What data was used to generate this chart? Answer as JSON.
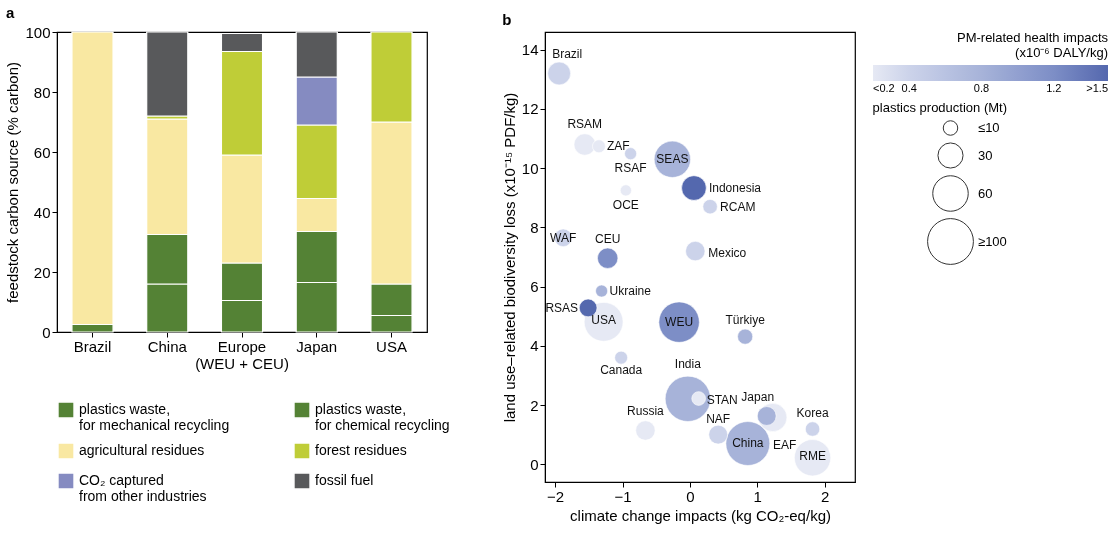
{
  "chart_data": [
    {
      "type": "bar",
      "title": "a",
      "ylabel": "feedstock carbon source (% carbon)",
      "stacked": true,
      "categories": [
        "Brazil",
        "China",
        "Europe\n(WEU + CEU)",
        "Japan",
        "USA"
      ],
      "series": [
        {
          "name": "plastics waste,\nfor mechanical recycling",
          "color": "#548235",
          "values": [
            2.5,
            16,
            10.5,
            16.5,
            5.5
          ]
        },
        {
          "name": "plastics waste,\nfor chemical recycling",
          "color": "#548235",
          "values": [
            null,
            16.5,
            12.5,
            17,
            10.5
          ]
        },
        {
          "name": "agricultural residues",
          "color": "#f9e8a2",
          "values": [
            97.5,
            38.5,
            36,
            11,
            54
          ]
        },
        {
          "name": "forest residues",
          "color": "#bfcd37",
          "values": [
            null,
            1,
            34.5,
            24.5,
            30
          ]
        },
        {
          "name": "CO₂ captured\nfrom other industries",
          "color": "#858bc1",
          "values": [
            null,
            null,
            null,
            16,
            null
          ]
        },
        {
          "name": "fossil fuel",
          "color": "#58595b",
          "values": [
            null,
            28,
            6,
            15,
            null
          ]
        }
      ],
      "ylim": [
        0,
        100
      ],
      "yticks": [
        0,
        20,
        40,
        60,
        80,
        100
      ],
      "legend": "bottom",
      "grid": false
    },
    {
      "type": "bubble",
      "title": "b",
      "xlabel": "climate change impacts (kg CO₂-eq/kg)",
      "ylabel": "land use–related biodiversity loss (x10⁻¹⁵ PDF/kg)",
      "x": [
        -1.94,
        -1.56,
        -1.35,
        -0.88,
        -0.26,
        -0.95,
        0.06,
        0.3,
        -1.88,
        0.08,
        -1.22,
        -1.31,
        -1.51,
        -1.28,
        -0.16,
        0.82,
        -1.02,
        -0.03,
        0.13,
        1.14,
        1.23,
        1.82,
        -0.66,
        0.42,
        0.86,
        1.82
      ],
      "values": [
        13.2,
        10.8,
        10.74,
        10.49,
        10.3,
        9.25,
        9.33,
        8.7,
        7.65,
        7.2,
        6.96,
        5.85,
        5.28,
        4.81,
        4.8,
        4.31,
        3.6,
        2.21,
        2.22,
        1.63,
        1.58,
        1.19,
        1.14,
        1.0,
        0.7,
        0.22
      ],
      "sizes": [
        25,
        22,
        8,
        7,
        63,
        6,
        29,
        10,
        15,
        18,
        20,
        7,
        15,
        72,
        78,
        11,
        8,
        98,
        9,
        17,
        38,
        10,
        18,
        17,
        92,
        63
      ],
      "cvalues": [
        0.4,
        0.2,
        0.2,
        0.4,
        0.8,
        0.2,
        1.5,
        0.4,
        0.4,
        0.4,
        1.2,
        0.8,
        1.5,
        0.2,
        1.2,
        0.8,
        0.4,
        0.8,
        0.2,
        0.8,
        0.2,
        0.4,
        0.2,
        0.4,
        0.8,
        0.2
      ],
      "colors": [
        "#ccd3ea",
        "#e6e9f4",
        "#e6e9f4",
        "#ccd3ea",
        "#a7b3d9",
        "#e6e9f4",
        "#5468ae",
        "#ccd3ea",
        "#ccd3ea",
        "#ccd3ea",
        "#7d8ec6",
        "#a7b3d9",
        "#5468ae",
        "#e6e9f4",
        "#7d8ec6",
        "#a7b3d9",
        "#ccd3ea",
        "#a7b3d9",
        "#e6e9f4",
        "#a7b3d9",
        "#e6e9f4",
        "#ccd3ea",
        "#e6e9f4",
        "#ccd3ea",
        "#a7b3d9",
        "#e6e9f4"
      ],
      "clabel": "PM-related health impacts\n(x10⁻⁶ DALY/kg)",
      "cticks": [
        {
          "value": 0.2,
          "label": "<0.2"
        },
        0.4,
        0.8,
        1.2,
        {
          "value": 1.5,
          "label": ">1.5"
        }
      ],
      "legend_title": "plastics production (Mt)",
      "size_legend": [
        {
          "value": 10,
          "label": "≤10"
        },
        30,
        60,
        {
          "value": 100,
          "label": "≥100"
        }
      ],
      "xlim": [
        -2.15,
        2.45
      ],
      "xticks": [
        -2,
        -1,
        0,
        1,
        2
      ],
      "ylim": [
        -0.6,
        14.6
      ],
      "yticks": [
        0,
        2,
        4,
        6,
        8,
        10,
        12,
        14
      ],
      "clim": [
        0.2,
        1.5
      ],
      "grid": false,
      "annotations": [
        {
          "text": "Brazil",
          "x": -1.94,
          "y": 13.2
        },
        {
          "text": "RSAM",
          "x": -1.56,
          "y": 10.8
        },
        {
          "text": "ZAF",
          "x": -1.35,
          "y": 10.74
        },
        {
          "text": "RSAF",
          "x": -0.88,
          "y": 10.49
        },
        {
          "text": "SEAS",
          "x": -0.26,
          "y": 10.3
        },
        {
          "text": "OCE",
          "x": -0.95,
          "y": 9.25
        },
        {
          "text": "Indonesia",
          "x": 0.06,
          "y": 9.33
        },
        {
          "text": "RCAM",
          "x": 0.3,
          "y": 8.7
        },
        {
          "text": "WAF",
          "x": -1.88,
          "y": 7.65
        },
        {
          "text": "Mexico",
          "x": 0.08,
          "y": 7.2
        },
        {
          "text": "CEU",
          "x": -1.22,
          "y": 6.96
        },
        {
          "text": "Ukraine",
          "x": -1.31,
          "y": 5.85
        },
        {
          "text": "RSAS",
          "x": -1.51,
          "y": 5.28
        },
        {
          "text": "USA",
          "x": -1.28,
          "y": 4.81
        },
        {
          "text": "WEU",
          "x": -0.16,
          "y": 4.8
        },
        {
          "text": "Türkiye",
          "x": 0.82,
          "y": 4.31
        },
        {
          "text": "Canada",
          "x": -1.02,
          "y": 3.6
        },
        {
          "text": "India",
          "x": -0.03,
          "y": 2.21
        },
        {
          "text": "STAN",
          "x": 0.13,
          "y": 2.22
        },
        {
          "text": "Japan",
          "x": 1.14,
          "y": 1.63
        },
        {
          "text": "EAF",
          "x": 1.23,
          "y": 1.58
        },
        {
          "text": "Korea",
          "x": 1.82,
          "y": 1.19
        },
        {
          "text": "Russia",
          "x": -0.66,
          "y": 1.14
        },
        {
          "text": "NAF",
          "x": 0.42,
          "y": 1.0
        },
        {
          "text": "China",
          "x": 0.86,
          "y": 0.7
        },
        {
          "text": "RME",
          "x": 1.82,
          "y": 0.22
        }
      ]
    }
  ]
}
